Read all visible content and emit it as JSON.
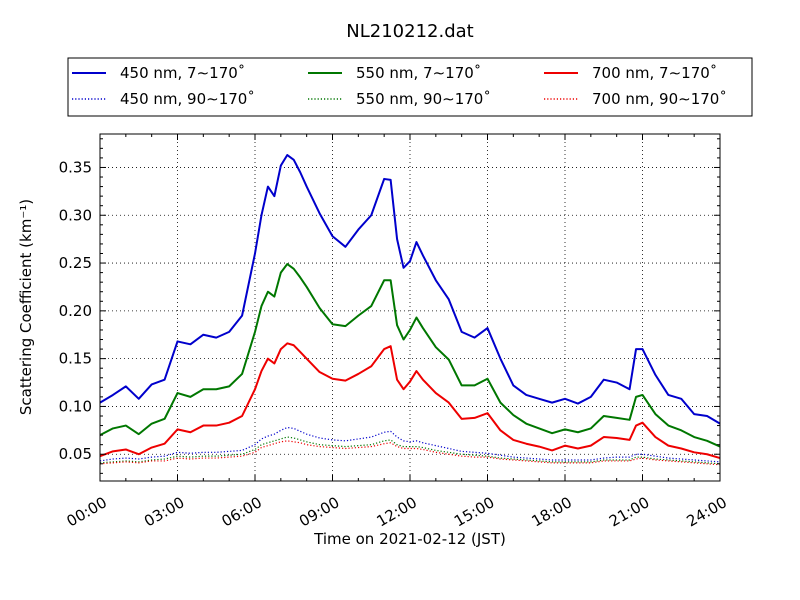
{
  "chart_data": {
    "type": "line",
    "title": "NL210212.dat",
    "xlabel": "Time on 2021-02-12 (JST)",
    "ylabel": "Scattering Coefficient (km⁻¹)",
    "xticks": [
      "00:00",
      "03:00",
      "06:00",
      "09:00",
      "12:00",
      "15:00",
      "18:00",
      "21:00",
      "24:00"
    ],
    "yticks": [
      "0.05",
      "0.10",
      "0.15",
      "0.20",
      "0.25",
      "0.30",
      "0.35"
    ],
    "xlim": [
      0,
      24
    ],
    "ylim": [
      0.022,
      0.385
    ],
    "grid": true,
    "legend_position": "top",
    "colors": {
      "blue": "#0000cc",
      "green": "#007700",
      "red": "#ee0000"
    },
    "x": [
      0,
      0.5,
      1,
      1.5,
      2,
      2.5,
      3,
      3.5,
      4,
      4.5,
      5,
      5.5,
      6,
      6.25,
      6.5,
      6.75,
      7,
      7.25,
      7.5,
      7.75,
      8,
      8.5,
      9,
      9.5,
      10,
      10.5,
      11,
      11.25,
      11.5,
      11.75,
      12,
      12.25,
      12.5,
      13,
      13.5,
      14,
      14.5,
      15,
      15.5,
      16,
      16.5,
      17,
      17.5,
      18,
      18.5,
      19,
      19.5,
      20,
      20.5,
      20.75,
      21,
      21.5,
      22,
      22.5,
      23,
      23.5,
      24
    ],
    "series": [
      {
        "name": "450 nm, 7∼170˚",
        "color": "#0000cc",
        "style": "solid",
        "values": [
          0.104,
          0.112,
          0.121,
          0.108,
          0.123,
          0.128,
          0.168,
          0.165,
          0.175,
          0.172,
          0.178,
          0.195,
          0.26,
          0.3,
          0.33,
          0.32,
          0.352,
          0.363,
          0.358,
          0.345,
          0.33,
          0.302,
          0.278,
          0.267,
          0.285,
          0.3,
          0.338,
          0.337,
          0.275,
          0.245,
          0.252,
          0.272,
          0.258,
          0.232,
          0.212,
          0.178,
          0.172,
          0.182,
          0.15,
          0.122,
          0.112,
          0.108,
          0.104,
          0.108,
          0.103,
          0.11,
          0.128,
          0.125,
          0.118,
          0.16,
          0.16,
          0.133,
          0.112,
          0.108,
          0.092,
          0.09,
          0.082
        ]
      },
      {
        "name": "550 nm, 7∼170˚",
        "color": "#007700",
        "style": "solid",
        "values": [
          0.07,
          0.077,
          0.08,
          0.071,
          0.082,
          0.087,
          0.114,
          0.11,
          0.118,
          0.118,
          0.121,
          0.134,
          0.178,
          0.205,
          0.22,
          0.215,
          0.24,
          0.249,
          0.244,
          0.235,
          0.225,
          0.203,
          0.186,
          0.184,
          0.195,
          0.205,
          0.232,
          0.232,
          0.185,
          0.17,
          0.18,
          0.193,
          0.182,
          0.162,
          0.149,
          0.122,
          0.122,
          0.129,
          0.104,
          0.091,
          0.082,
          0.077,
          0.072,
          0.076,
          0.073,
          0.077,
          0.09,
          0.088,
          0.086,
          0.11,
          0.112,
          0.092,
          0.08,
          0.075,
          0.068,
          0.064,
          0.058
        ]
      },
      {
        "name": "700 nm, 7∼170˚",
        "color": "#ee0000",
        "style": "solid",
        "values": [
          0.048,
          0.053,
          0.055,
          0.05,
          0.057,
          0.061,
          0.076,
          0.073,
          0.08,
          0.08,
          0.083,
          0.09,
          0.118,
          0.137,
          0.15,
          0.145,
          0.16,
          0.166,
          0.164,
          0.157,
          0.15,
          0.136,
          0.129,
          0.127,
          0.134,
          0.142,
          0.16,
          0.163,
          0.128,
          0.118,
          0.126,
          0.137,
          0.128,
          0.114,
          0.104,
          0.087,
          0.088,
          0.093,
          0.075,
          0.065,
          0.061,
          0.058,
          0.054,
          0.059,
          0.056,
          0.059,
          0.068,
          0.067,
          0.065,
          0.08,
          0.083,
          0.068,
          0.059,
          0.056,
          0.052,
          0.05,
          0.046
        ]
      },
      {
        "name": "450 nm, 90∼170˚",
        "color": "#0000cc",
        "style": "dotted",
        "values": [
          0.043,
          0.045,
          0.046,
          0.045,
          0.047,
          0.048,
          0.052,
          0.051,
          0.052,
          0.052,
          0.053,
          0.054,
          0.06,
          0.066,
          0.069,
          0.071,
          0.075,
          0.078,
          0.077,
          0.074,
          0.071,
          0.067,
          0.065,
          0.064,
          0.066,
          0.068,
          0.073,
          0.074,
          0.068,
          0.064,
          0.063,
          0.064,
          0.062,
          0.059,
          0.056,
          0.053,
          0.052,
          0.051,
          0.049,
          0.047,
          0.046,
          0.045,
          0.044,
          0.044,
          0.044,
          0.044,
          0.046,
          0.047,
          0.047,
          0.05,
          0.05,
          0.048,
          0.046,
          0.045,
          0.044,
          0.043,
          0.042
        ]
      },
      {
        "name": "550 nm, 90∼170˚",
        "color": "#007700",
        "style": "dotted",
        "values": [
          0.041,
          0.042,
          0.043,
          0.042,
          0.044,
          0.045,
          0.048,
          0.047,
          0.048,
          0.048,
          0.049,
          0.05,
          0.055,
          0.06,
          0.062,
          0.064,
          0.066,
          0.068,
          0.067,
          0.065,
          0.063,
          0.06,
          0.059,
          0.058,
          0.059,
          0.06,
          0.064,
          0.065,
          0.06,
          0.058,
          0.058,
          0.058,
          0.057,
          0.054,
          0.052,
          0.05,
          0.049,
          0.048,
          0.046,
          0.045,
          0.044,
          0.043,
          0.042,
          0.042,
          0.042,
          0.042,
          0.044,
          0.044,
          0.044,
          0.047,
          0.047,
          0.045,
          0.044,
          0.043,
          0.042,
          0.041,
          0.04
        ]
      },
      {
        "name": "700 nm, 90∼170˚",
        "color": "#ee0000",
        "style": "dotted",
        "values": [
          0.04,
          0.041,
          0.042,
          0.041,
          0.043,
          0.043,
          0.046,
          0.045,
          0.046,
          0.046,
          0.047,
          0.048,
          0.052,
          0.057,
          0.059,
          0.061,
          0.063,
          0.064,
          0.063,
          0.062,
          0.06,
          0.058,
          0.057,
          0.056,
          0.057,
          0.058,
          0.061,
          0.062,
          0.058,
          0.056,
          0.056,
          0.056,
          0.055,
          0.052,
          0.05,
          0.048,
          0.047,
          0.047,
          0.045,
          0.044,
          0.043,
          0.042,
          0.041,
          0.041,
          0.041,
          0.041,
          0.043,
          0.043,
          0.043,
          0.045,
          0.046,
          0.044,
          0.043,
          0.042,
          0.041,
          0.04,
          0.039
        ]
      }
    ]
  }
}
